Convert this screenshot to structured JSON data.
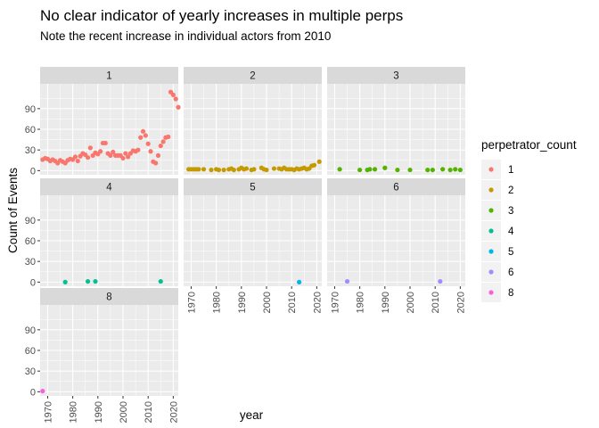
{
  "chart_data": {
    "type": "scatter",
    "title": "No clear indicator of yearly increases in multiple perps",
    "subtitle": "Note the recent increase in individual actors from 2010",
    "xlabel": "year",
    "ylabel": "Count of Events",
    "x_ticks": [
      1970,
      1980,
      1990,
      2000,
      2010,
      2020
    ],
    "y_ticks": [
      0,
      30,
      60,
      90
    ],
    "xlim": [
      1967,
      2022
    ],
    "ylim": [
      -6,
      126
    ],
    "grid": true,
    "legend": {
      "title": "perpetrator_count",
      "placement": "right",
      "entries": [
        {
          "label": "1",
          "color": "#F8766D"
        },
        {
          "label": "2",
          "color": "#C49A00"
        },
        {
          "label": "3",
          "color": "#53B400"
        },
        {
          "label": "4",
          "color": "#00C094"
        },
        {
          "label": "5",
          "color": "#00B6EB"
        },
        {
          "label": "6",
          "color": "#A58AFF"
        },
        {
          "label": "8",
          "color": "#FB61D7"
        }
      ]
    },
    "facets": [
      {
        "label": "1",
        "color": "#F8766D",
        "points": [
          [
            1968,
            16
          ],
          [
            1969,
            18
          ],
          [
            1970,
            17
          ],
          [
            1971,
            14
          ],
          [
            1972,
            16
          ],
          [
            1973,
            14
          ],
          [
            1974,
            11
          ],
          [
            1975,
            15
          ],
          [
            1976,
            13
          ],
          [
            1977,
            11
          ],
          [
            1978,
            15
          ],
          [
            1979,
            17
          ],
          [
            1980,
            16
          ],
          [
            1981,
            20
          ],
          [
            1982,
            14
          ],
          [
            1983,
            21
          ],
          [
            1984,
            25
          ],
          [
            1985,
            23
          ],
          [
            1986,
            19
          ],
          [
            1987,
            33
          ],
          [
            1988,
            22
          ],
          [
            1989,
            26
          ],
          [
            1990,
            24
          ],
          [
            1991,
            28
          ],
          [
            1992,
            40
          ],
          [
            1993,
            40
          ],
          [
            1994,
            25
          ],
          [
            1995,
            22
          ],
          [
            1996,
            27
          ],
          [
            1997,
            22
          ],
          [
            1998,
            22
          ],
          [
            1999,
            22
          ],
          [
            2000,
            18
          ],
          [
            2001,
            25
          ],
          [
            2002,
            20
          ],
          [
            2003,
            25
          ],
          [
            2004,
            29
          ],
          [
            2005,
            28
          ],
          [
            2006,
            30
          ],
          [
            2007,
            48
          ],
          [
            2008,
            57
          ],
          [
            2009,
            51
          ],
          [
            2010,
            39
          ],
          [
            2011,
            28
          ],
          [
            2012,
            13
          ],
          [
            2013,
            11
          ],
          [
            2014,
            22
          ],
          [
            2015,
            36
          ],
          [
            2016,
            42
          ],
          [
            2017,
            48
          ],
          [
            2018,
            49
          ],
          [
            2019,
            114
          ],
          [
            2020,
            110
          ],
          [
            2021,
            104
          ],
          [
            2022,
            92
          ]
        ]
      },
      {
        "label": "2",
        "color": "#C49A00",
        "points": [
          [
            1969,
            2
          ],
          [
            1970,
            2
          ],
          [
            1971,
            2
          ],
          [
            1972,
            2
          ],
          [
            1973,
            2
          ],
          [
            1975,
            2
          ],
          [
            1978,
            1
          ],
          [
            1980,
            2
          ],
          [
            1981,
            1
          ],
          [
            1983,
            1
          ],
          [
            1985,
            2
          ],
          [
            1986,
            3
          ],
          [
            1987,
            1
          ],
          [
            1989,
            2
          ],
          [
            1990,
            4
          ],
          [
            1991,
            2
          ],
          [
            1992,
            3
          ],
          [
            1994,
            1
          ],
          [
            1995,
            2
          ],
          [
            1998,
            4
          ],
          [
            1999,
            2
          ],
          [
            2000,
            1
          ],
          [
            2003,
            3
          ],
          [
            2005,
            3
          ],
          [
            2006,
            2
          ],
          [
            2007,
            4
          ],
          [
            2008,
            2
          ],
          [
            2009,
            2
          ],
          [
            2010,
            2
          ],
          [
            2011,
            1
          ],
          [
            2012,
            3
          ],
          [
            2013,
            2
          ],
          [
            2014,
            3
          ],
          [
            2015,
            4
          ],
          [
            2016,
            2
          ],
          [
            2017,
            3
          ],
          [
            2018,
            7
          ],
          [
            2019,
            8
          ],
          [
            2021,
            13
          ]
        ]
      },
      {
        "label": "3",
        "color": "#53B400",
        "points": [
          [
            1972,
            2
          ],
          [
            1980,
            1
          ],
          [
            1983,
            1
          ],
          [
            1984,
            2
          ],
          [
            1986,
            2
          ],
          [
            1990,
            4
          ],
          [
            1995,
            1
          ],
          [
            2000,
            1
          ],
          [
            2007,
            1
          ],
          [
            2009,
            1
          ],
          [
            2013,
            2
          ],
          [
            2016,
            1
          ],
          [
            2018,
            2
          ],
          [
            2020,
            1
          ]
        ]
      },
      {
        "label": "4",
        "color": "#00C094",
        "points": [
          [
            1977,
            0
          ],
          [
            1986,
            1
          ],
          [
            1989,
            1
          ],
          [
            2015,
            1
          ]
        ]
      },
      {
        "label": "5",
        "color": "#00B6EB",
        "points": [
          [
            2013,
            0
          ]
        ]
      },
      {
        "label": "6",
        "color": "#A58AFF",
        "points": [
          [
            1975,
            1
          ],
          [
            2012,
            1
          ]
        ]
      },
      {
        "label": "8",
        "color": "#FB61D7",
        "points": [
          [
            1968,
            1
          ]
        ]
      }
    ]
  }
}
